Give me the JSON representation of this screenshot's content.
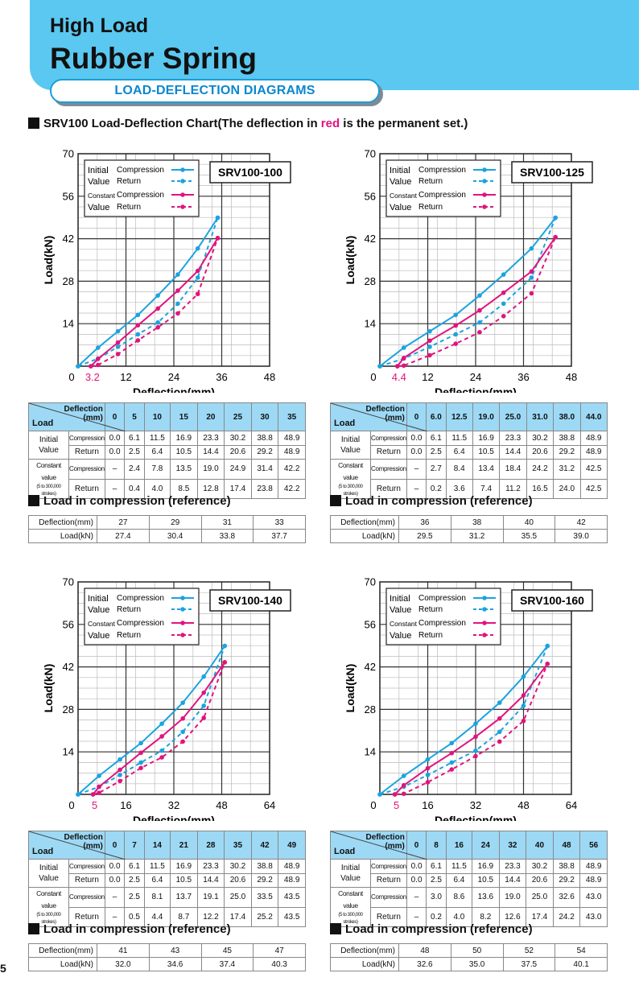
{
  "header": {
    "title": "High Load",
    "product": "Rubber Spring",
    "section": "LOAD-DEFLECTION DIAGRAMS"
  },
  "subtitle": {
    "prefix": "SRV100 Load-Deflection Chart(The deflection in ",
    "highlight": "red",
    "suffix": " is the permanent set.)"
  },
  "page_number": "5",
  "colors": {
    "initial": "#1ba3e0",
    "constant": "#e0147d",
    "header_bg": "#5ac8f0",
    "table_header": "#9dd9f5"
  },
  "legend": {
    "initial_label_1": "Initial",
    "initial_label_2": "Value",
    "constant_label_1": "Constant",
    "constant_label_2": "Value",
    "compression": "Compression",
    "return": "Return"
  },
  "table_labels": {
    "deflection": "Deflection",
    "unit": "(mm)",
    "load": "Load",
    "initial_1": "Initial",
    "initial_2": "Value",
    "constant_1": "Constant value",
    "constant_2": "(5 to 300,000 strokes)",
    "compression": "Compression",
    "return": "Return",
    "ref_title": "Load in compression (reference)",
    "ref_deflection": "Deflection(mm)",
    "ref_load": "Load(kN)"
  },
  "chart_data": [
    {
      "type": "line",
      "model": "SRV100-100",
      "xlabel": "Deflection(mm)",
      "ylabel": "Load(kN)",
      "xticks": [
        "0",
        "12",
        "24",
        "36",
        "48"
      ],
      "xmax": 48,
      "yticks": [
        "14",
        "28",
        "42",
        "56",
        "70"
      ],
      "ylim": [
        0,
        70
      ],
      "permanent_set": "3.2",
      "deflection": [
        "0",
        "5",
        "10",
        "15",
        "20",
        "25",
        "30",
        "35"
      ],
      "deflection_values": [
        0,
        5,
        10,
        15,
        20,
        25,
        30,
        35
      ],
      "series": [
        {
          "name": "Initial Value Compression",
          "values": [
            0.0,
            6.1,
            11.5,
            16.9,
            23.3,
            30.2,
            38.8,
            48.9
          ]
        },
        {
          "name": "Initial Value Return",
          "values": [
            0.0,
            2.5,
            6.4,
            10.5,
            14.4,
            20.6,
            29.2,
            48.9
          ]
        },
        {
          "name": "Constant Value Compression",
          "values": [
            null,
            2.4,
            7.8,
            13.5,
            19.0,
            24.9,
            31.4,
            42.2
          ]
        },
        {
          "name": "Constant Value Return",
          "values": [
            null,
            0.4,
            4.0,
            8.5,
            12.8,
            17.4,
            23.8,
            42.2
          ]
        }
      ],
      "rows": {
        "init_comp": [
          "0.0",
          "6.1",
          "11.5",
          "16.9",
          "23.3",
          "30.2",
          "38.8",
          "48.9"
        ],
        "init_ret": [
          "0.0",
          "2.5",
          "6.4",
          "10.5",
          "14.4",
          "20.6",
          "29.2",
          "48.9"
        ],
        "const_comp": [
          "–",
          "2.4",
          "7.8",
          "13.5",
          "19.0",
          "24.9",
          "31.4",
          "42.2"
        ],
        "const_ret": [
          "–",
          "0.4",
          "4.0",
          "8.5",
          "12.8",
          "17.4",
          "23.8",
          "42.2"
        ]
      },
      "reference": {
        "deflection": [
          "27",
          "29",
          "31",
          "33"
        ],
        "load": [
          "27.4",
          "30.4",
          "33.8",
          "37.7"
        ]
      }
    },
    {
      "type": "line",
      "model": "SRV100-125",
      "xlabel": "Deflection(mm)",
      "ylabel": "Load(kN)",
      "xticks": [
        "0",
        "12",
        "24",
        "36",
        "48"
      ],
      "xmax": 48,
      "yticks": [
        "14",
        "28",
        "42",
        "56",
        "70"
      ],
      "ylim": [
        0,
        70
      ],
      "permanent_set": "4.4",
      "deflection": [
        "0",
        "6.0",
        "12.5",
        "19.0",
        "25.0",
        "31.0",
        "38.0",
        "44.0"
      ],
      "deflection_values": [
        0,
        6.0,
        12.5,
        19.0,
        25.0,
        31.0,
        38.0,
        44.0
      ],
      "series": [
        {
          "name": "Initial Value Compression",
          "values": [
            0.0,
            6.1,
            11.5,
            16.9,
            23.3,
            30.2,
            38.8,
            48.9
          ]
        },
        {
          "name": "Initial Value Return",
          "values": [
            0.0,
            2.5,
            6.4,
            10.5,
            14.4,
            20.6,
            29.2,
            48.9
          ]
        },
        {
          "name": "Constant Value Compression",
          "values": [
            null,
            2.7,
            8.4,
            13.4,
            18.4,
            24.2,
            31.2,
            42.5
          ]
        },
        {
          "name": "Constant Value Return",
          "values": [
            null,
            0.2,
            3.6,
            7.4,
            11.2,
            16.5,
            24.0,
            42.5
          ]
        }
      ],
      "rows": {
        "init_comp": [
          "0.0",
          "6.1",
          "11.5",
          "16.9",
          "23.3",
          "30.2",
          "38.8",
          "48.9"
        ],
        "init_ret": [
          "0.0",
          "2.5",
          "6.4",
          "10.5",
          "14.4",
          "20.6",
          "29.2",
          "48.9"
        ],
        "const_comp": [
          "–",
          "2.7",
          "8.4",
          "13.4",
          "18.4",
          "24.2",
          "31.2",
          "42.5"
        ],
        "const_ret": [
          "–",
          "0.2",
          "3.6",
          "7.4",
          "11.2",
          "16.5",
          "24.0",
          "42.5"
        ]
      },
      "reference": {
        "deflection": [
          "36",
          "38",
          "40",
          "42"
        ],
        "load": [
          "29.5",
          "31.2",
          "35.5",
          "39.0"
        ]
      }
    },
    {
      "type": "line",
      "model": "SRV100-140",
      "xlabel": "Deflection(mm)",
      "ylabel": "Load(kN)",
      "xticks": [
        "0",
        "16",
        "32",
        "48",
        "64"
      ],
      "xmax": 64,
      "yticks": [
        "14",
        "28",
        "42",
        "56",
        "70"
      ],
      "ylim": [
        0,
        70
      ],
      "permanent_set": "5",
      "deflection": [
        "0",
        "7",
        "14",
        "21",
        "28",
        "35",
        "42",
        "49"
      ],
      "deflection_values": [
        0,
        7,
        14,
        21,
        28,
        35,
        42,
        49
      ],
      "series": [
        {
          "name": "Initial Value Compression",
          "values": [
            0.0,
            6.1,
            11.5,
            16.9,
            23.3,
            30.2,
            38.8,
            48.9
          ]
        },
        {
          "name": "Initial Value Return",
          "values": [
            0.0,
            2.5,
            6.4,
            10.5,
            14.4,
            20.6,
            29.2,
            48.9
          ]
        },
        {
          "name": "Constant Value Compression",
          "values": [
            null,
            2.5,
            8.1,
            13.7,
            19.1,
            25.0,
            33.5,
            43.5
          ]
        },
        {
          "name": "Constant Value Return",
          "values": [
            null,
            0.5,
            4.4,
            8.7,
            12.2,
            17.4,
            25.2,
            43.5
          ]
        }
      ],
      "rows": {
        "init_comp": [
          "0.0",
          "6.1",
          "11.5",
          "16.9",
          "23.3",
          "30.2",
          "38.8",
          "48.9"
        ],
        "init_ret": [
          "0.0",
          "2.5",
          "6.4",
          "10.5",
          "14.4",
          "20.6",
          "29.2",
          "48.9"
        ],
        "const_comp": [
          "–",
          "2.5",
          "8.1",
          "13.7",
          "19.1",
          "25.0",
          "33.5",
          "43.5"
        ],
        "const_ret": [
          "–",
          "0.5",
          "4.4",
          "8.7",
          "12.2",
          "17.4",
          "25.2",
          "43.5"
        ]
      },
      "reference": {
        "deflection": [
          "41",
          "43",
          "45",
          "47"
        ],
        "load": [
          "32.0",
          "34.6",
          "37.4",
          "40.3"
        ]
      }
    },
    {
      "type": "line",
      "model": "SRV100-160",
      "xlabel": "Deflection(mm)",
      "ylabel": "Load(kN)",
      "xticks": [
        "0",
        "16",
        "32",
        "48",
        "64"
      ],
      "xmax": 64,
      "yticks": [
        "14",
        "28",
        "42",
        "56",
        "70"
      ],
      "ylim": [
        0,
        70
      ],
      "permanent_set": "5",
      "deflection": [
        "0",
        "8",
        "16",
        "24",
        "32",
        "40",
        "48",
        "56"
      ],
      "deflection_values": [
        0,
        8,
        16,
        24,
        32,
        40,
        48,
        56
      ],
      "series": [
        {
          "name": "Initial Value Compression",
          "values": [
            0.0,
            6.1,
            11.5,
            16.9,
            23.3,
            30.2,
            38.8,
            48.9
          ]
        },
        {
          "name": "Initial Value Return",
          "values": [
            0.0,
            2.5,
            6.4,
            10.5,
            14.4,
            20.6,
            29.2,
            48.9
          ]
        },
        {
          "name": "Constant Value Compression",
          "values": [
            null,
            3.0,
            8.6,
            13.6,
            19.0,
            25.0,
            32.6,
            43.0
          ]
        },
        {
          "name": "Constant Value Return",
          "values": [
            null,
            0.2,
            4.0,
            8.2,
            12.6,
            17.4,
            24.2,
            43.0
          ]
        }
      ],
      "rows": {
        "init_comp": [
          "0.0",
          "6.1",
          "11.5",
          "16.9",
          "23.3",
          "30.2",
          "38.8",
          "48.9"
        ],
        "init_ret": [
          "0.0",
          "2.5",
          "6.4",
          "10.5",
          "14.4",
          "20.6",
          "29.2",
          "48.9"
        ],
        "const_comp": [
          "–",
          "3.0",
          "8.6",
          "13.6",
          "19.0",
          "25.0",
          "32.6",
          "43.0"
        ],
        "const_ret": [
          "–",
          "0.2",
          "4.0",
          "8.2",
          "12.6",
          "17.4",
          "24.2",
          "43.0"
        ]
      },
      "reference": {
        "deflection": [
          "48",
          "50",
          "52",
          "54"
        ],
        "load": [
          "32.6",
          "35.0",
          "37.5",
          "40.1"
        ]
      }
    }
  ]
}
